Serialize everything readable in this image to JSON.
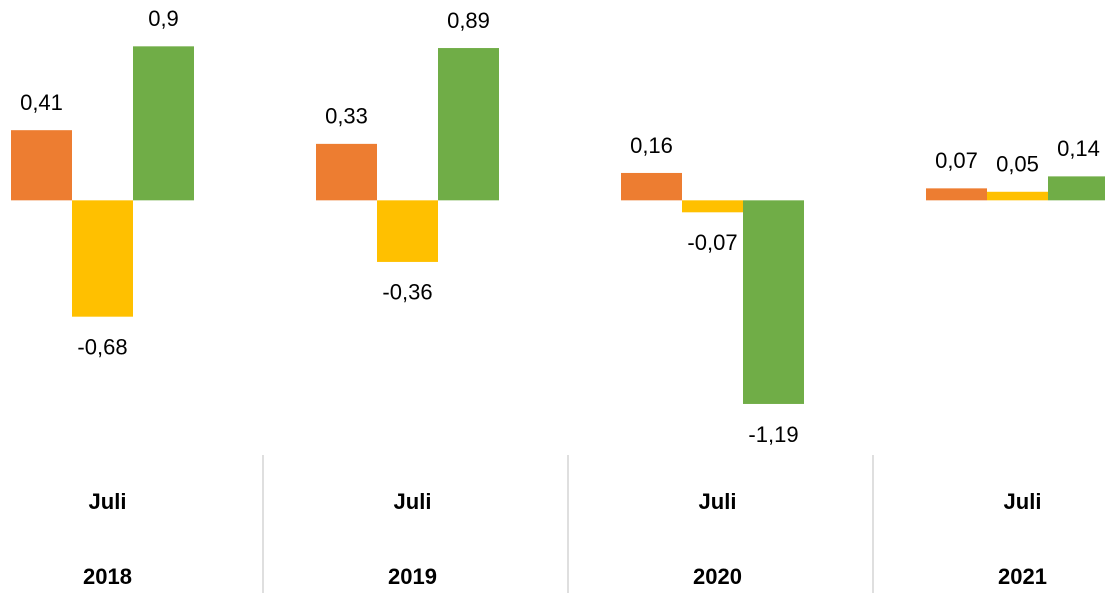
{
  "chart_data": {
    "type": "bar",
    "categories": [
      [
        "Juli",
        "2018"
      ],
      [
        "Juli",
        "2019"
      ],
      [
        "Juli",
        "2020"
      ],
      [
        "Juli",
        "2021"
      ]
    ],
    "series": [
      {
        "color": "#ED7D31",
        "values": [
          0.41,
          0.33,
          0.16,
          0.07
        ],
        "value_labels": [
          "0,41",
          "0,33",
          "0,16",
          "0,07"
        ]
      },
      {
        "color": "#FFC000",
        "values": [
          -0.68,
          -0.36,
          -0.07,
          0.05
        ],
        "value_labels": [
          "-0,68",
          "-0,36",
          "-0,07",
          "0,05"
        ]
      },
      {
        "color": "#70AD47",
        "values": [
          0.9,
          0.89,
          -1.19,
          0.14
        ],
        "value_labels": [
          "0,9",
          "0,89",
          "-1,19",
          "0,14"
        ]
      }
    ],
    "ylim": [
      -1.5,
      1.2
    ]
  }
}
